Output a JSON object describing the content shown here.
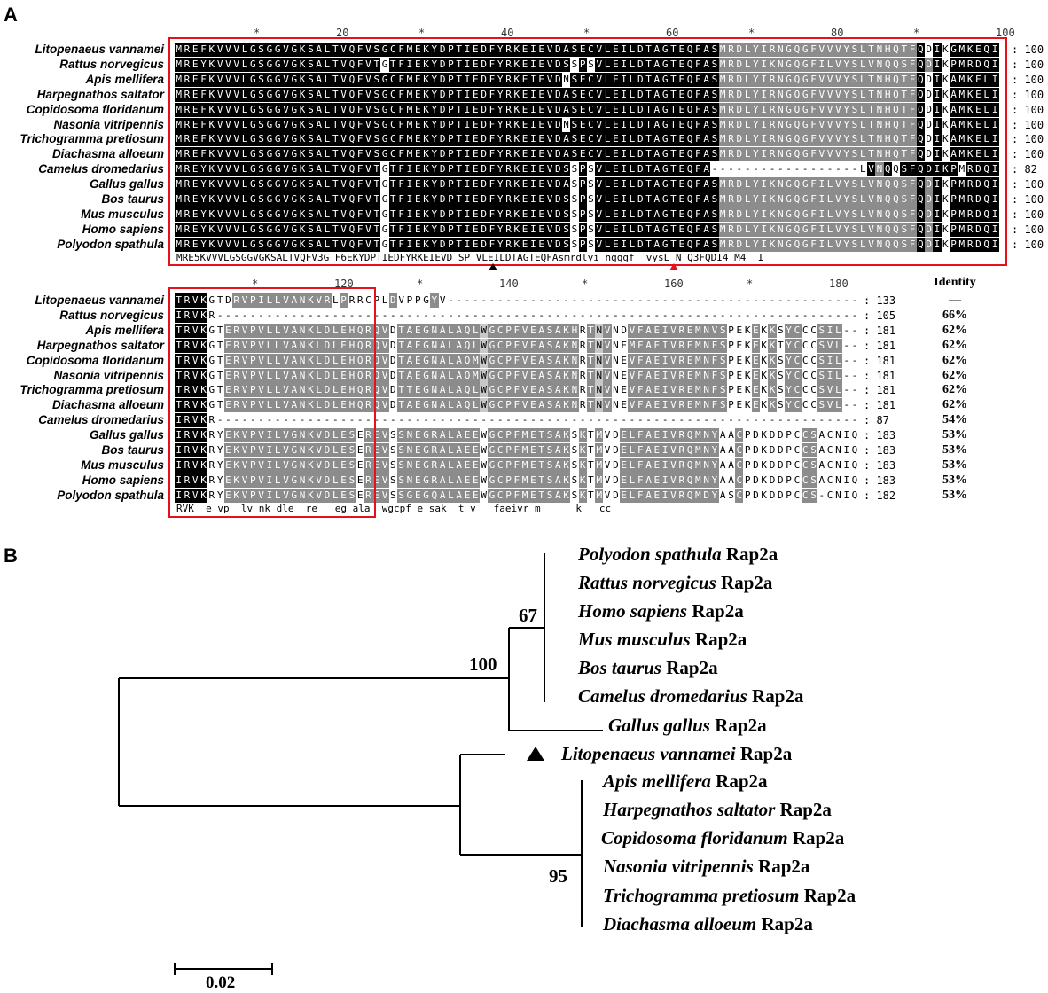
{
  "panel_a": {
    "letter": "A",
    "ruler1": [
      "*",
      "20",
      "*",
      "40",
      "*",
      "60",
      "*",
      "80",
      "*",
      "100"
    ],
    "ruler2": [
      "*",
      "120",
      "*",
      "140",
      "*",
      "160",
      "*",
      "180"
    ],
    "identity_header": "Identity",
    "block1": [
      {
        "name": "Litopenaeus vannamei",
        "count": "100",
        "seq": "MREFKVVVLGSGGVGKSALTVQFVSGCFMEKYDPTIEDFYRKEIEVDASECVLEILDTAGTEQFASMRDLYIRNGQGFVVVYSLTNHQTFQDIKGMKEQI",
        "mask": "bbbbbbbbbbbbbbbbbbbbbbbbbbbbbbbbbbbbbbbbbbbbbbbbbbbbbbbbbbbbbbbbbbggggggggggggggggggggggggbwbwbbbbbbbbwbbbbw"
      },
      {
        "name": "Rattus norvegicus",
        "count": "100",
        "seq": "MREYKVVVLGSGGVGKSALTVQFVTGTFIEKYDPTIEDFYRKEIEVDSSPSVLEILDTAGTEQFASMRDLYIKNGQGFILVYSLVNQQSFQDIKPMRDQI",
        "mask": "bbbbbbbbbbbbbbbbbbbbbbbbbwbbbbbbbbbbbbbbbbbbbbbbwbwbbbbbbbbbbbbbbbggggggggggggggggggggggggbgbwbbbbbbbwbbbbw"
      },
      {
        "name": "Apis mellifera",
        "count": "100",
        "seq": "MREFKVVVLGSGGVGKSALTVQFVSGCFMEKYDPTIEDFYRKEIEVDNSECVLEILDTAGTEQFASMRDLYIRNGQGFVVVYSLTNHQTFQDIKAMKELI",
        "mask": "bbbbbbbbbbbbbbbbbbbbbbbbbbbbbbbbbbbbbbbbbbbbbbbwbbbbbbbbbbbbbbbbbbggggggggggggggggggggggggbwbwbbbbbbbbwbbbbw"
      },
      {
        "name": "Harpegnathos saltator",
        "count": "100",
        "seq": "MREFKVVVLGSGGVGKSALTVQFVSGCFMEKYDPTIEDFYRKEIEVDASECVLEILDTAGTEQFASMRDLYIRNGQGFVVVYSLTNHQTFQDIKAMKELI",
        "mask": "bbbbbbbbbbbbbbbbbbbbbbbbbbbbbbbbbbbbbbbbbbbbbbbbbbbbbbbbbbbbbbbbbbggggggggggggggggggggggggbwbwbbbbbbbbwbbbbw"
      },
      {
        "name": "Copidosoma floridanum",
        "count": "100",
        "seq": "MREFKVVVLGSGGVGKSALTVQFVSGCFMEKYDPTIEDFYRKEIEVDASECVLEILDTAGTEQFASMRDLYIRNGQGFVVVYSLTNHQTFQDIKAMKELI",
        "mask": "bbbbbbbbbbbbbbbbbbbbbbbbbbbbbbbbbbbbbbbbbbbbbbbbbbbbbbbbbbbbbbbbbbggggggggggggggggggggggggbwbwbbbbbbbbwbbbbw"
      },
      {
        "name": "Nasonia vitripennis",
        "count": "100",
        "seq": "MREFKVVVLGSGGVGKSALTVQFVSGCFMEKYDPTIEDFYRKEIEVDNSECVLEILDTAGTEQFASMRDLYIRNGQGFVVVYSLTNHQTFQDIKAMKELI",
        "mask": "bbbbbbbbbbbbbbbbbbbbbbbbbbbbbbbbbbbbbbbbbbbbbbbwbbbbbbbbbbbbbbbbbbggggggggggggggggggggggggbwbwbbbbbbbbwbbbbw"
      },
      {
        "name": "Trichogramma pretiosum",
        "count": "100",
        "seq": "MREFKVVVLGSGGVGKSALTVQFVSGCFMEKYDPTIEDFYRKEIEVDASECVLEILDTAGTEQFASMRDLYIRNGQGFVVVYSLTNHQTFQDIKAMKELI",
        "mask": "bbbbbbbbbbbbbbbbbbbbbbbbbbbbbbbbbbbbbbbbbbbbbbbbbbbbbbbbbbbbbbbbbbggggggggggggggggggggggggbwbwbbbbbbbbwbbbbw"
      },
      {
        "name": "Diachasma alloeum",
        "count": "100",
        "seq": "MREFKVVVLGSGGVGKSALTVQFVSGCFMEKYDPTIEDFYRKEIEVDASECVLEILDTAGTEQFASMRDLYIRNGQGFVVVYSLTNHQTFQDIKAMKELI",
        "mask": "bbbbbbbbbbbbbbbbbbbbbbbbbbbbbbbbbbbbbbbbbbbbbbbbbbbbbbbbbbbbbbbbbbggggggggggggggggggggggggbwbwbbbbbbbbwbbbbw"
      },
      {
        "name": "Camelus dromedarius",
        "count": "82",
        "seq": "MREYKVVVLGSGGVGKSALTVQFVTGTFIEKYDPTIEDFYRKEIEVDSSPSVLEILDTAGTEQFA------------------LVNQQSFQDIKPMRDQI",
        "mask": "bbbbbbbbbbbbbbbbbbbbbbbbbwbbbbbbbbbbbbbbbbbbbbbbwbwbbbbbbbbbbbbbbbwwwwwwwwwwwwwwwwwwbgbwbbbbbbbwbbbbw"
      },
      {
        "name": "Gallus gallus",
        "count": "100",
        "seq": "MREYKVVVLGSGGVGKSALTVQFVTGTFIEKYDPTIEDFYRKEIEVDASPSVLEILDTAGTEQFASMRDLYIKNGQGFILVYSLVNQQSFQDIKPMRDQI",
        "mask": "bbbbbbbbbbbbbbbbbbbbbbbbbwbbbbbbbbbbbbbbbbbbbbbbwbwbbbbbbbbbbbbbbbggggggggggggggggggggggggbgbwbbbbbbbwbbbbw"
      },
      {
        "name": "Bos taurus",
        "count": "100",
        "seq": "MREYKVVVLGSGGVGKSALTVQFVTGTFIEKYDPTIEDFYRKEIEVDSSPSVLEILDTAGTEQFASMRDLYIKNGQGFILVYSLVNQQSFQDIKPMRDQI",
        "mask": "bbbbbbbbbbbbbbbbbbbbbbbbbwbbbbbbbbbbbbbbbbbbbbbbwbwbbbbbbbbbbbbbbbggggggggggggggggggggggggbgbwbbbbbbbwbbbbw"
      },
      {
        "name": "Mus musculus",
        "count": "100",
        "seq": "MREYKVVVLGSGGVGKSALTVQFVTGTFIEKYDPTIEDFYRKEIEVDSSPSVLEILDTAGTEQFASMRDLYIKNGQGFILVYSLVNQQSFQDIKPMRDQI",
        "mask": "bbbbbbbbbbbbbbbbbbbbbbbbbwbbbbbbbbbbbbbbbbbbbbbbwbwbbbbbbbbbbbbbbbggggggggggggggggggggggggbgbwbbbbbbbwbbbbw"
      },
      {
        "name": "Homo sapiens",
        "count": "100",
        "seq": "MREYKVVVLGSGGVGKSALTVQFVTGTFIEKYDPTIEDFYRKEIEVDSSPSVLEILDTAGTEQFASMRDLYIKNGQGFILVYSLVNQQSFQDIKPMRDQI",
        "mask": "bbbbbbbbbbbbbbbbbbbbbbbbbwbbbbbbbbbbbbbbbbbbbbbbwbwbbbbbbbbbbbbbbbggggggggggggggggggggggggbgbwbbbbbbbwbbbbw"
      },
      {
        "name": "Polyodon spathula",
        "count": "100",
        "seq": "MREYKVVVLGSGGVGKSALTVQFVTGTFIEKYDPTIEDFYRKEIEVDSSPSVLEILDTAGTEQFASMRDLYIKNGQGFILVYSLVNQQSFQDIKPMRDQI",
        "mask": "bbbbbbbbbbbbbbbbbbbbbbbbbwbbbbbbbbbbbbbbbbbbbbbbwbwbbbbbbbbbbbbbbbggggggggggggggggggggggggbgbwbbbbbbbwbbbbw"
      }
    ],
    "consensus1": "MRE5KVVVLGSGGVGKSALTVQFV3G F6EKYDPTIEDFYRKEIEVD SP VLEILDTAGTEQFAsmrdlyi ngqgf  vysL N Q3FQDI4 M4  I",
    "block2": [
      {
        "name": "Litopenaeus vannamei",
        "count": "133",
        "identity": "—",
        "seq": "TRVKGTDRVPILLVANKVRLPRRCPLDVPPGYV---------------------------------------------------",
        "mask": "bbbbwwwggggggggggggwgwwwwwgwwwwgwwwwwwwwwwwwwwwwwwwwwwwwwwwwwwwwwwwwwwwwwwwwwwwwwwwwwwwwwww"
      },
      {
        "name": "Rattus norvegicus",
        "count": "105",
        "identity": "66%",
        "seq": "IRVKR------------------------------------------------------------------------------",
        "mask": "bbbbwwwwwwwwwwwwwwwwwwwwwwwwwwwwwwwwwwwwwwwwwwwwwwwwwwwwwwwwwwwwwwwwwwwwwwwwwwwwwwwwwwww"
      },
      {
        "name": "Apis mellifera",
        "count": "181",
        "identity": "62%",
        "seq": "TRVKGTERVPVLLVANKLDLEHQRQVDTAEGNALAQLWGCPFVEASAKHRTNVNDVFAEIVREMNVSPEKEKKSYCCCSIL--",
        "mask": "bbbbwwggggggggggggggggggggwgggggggggglgggggggggggwglgwwggggggggggggwwwgwgwggwwgggggwww"
      },
      {
        "name": "Harpegnathos saltator",
        "count": "181",
        "identity": "62%",
        "seq": "TRVKGTERVPVLLVANKLDLEHQRQVDTAEGNALAQLWGCPFVEASAKNRTNVNEMFAEIVREMNFSPEKEKKTYCCCSVL--",
        "mask": "bbbbwwggggggggggggggggggggwgggggggggglgggggggggggwglgwwggggggggggggwwwgwgwggwwgggggwww"
      },
      {
        "name": "Copidosoma floridanum",
        "count": "181",
        "identity": "62%",
        "seq": "TRVKGTERVPVLLVANKLDLEHQRQVDTAEGNALAQMWGCPFVEASAKNRTNVNEVFAEIVREMNFSPEKEKKSYCCCSIL--",
        "mask": "bbbbwwggggggggggggggggggggwgggggggggglgggggggggggwglgwwggggggggggggwwwgwgwggwwgggggwww"
      },
      {
        "name": "Nasonia vitripennis",
        "count": "181",
        "identity": "62%",
        "seq": "TRVKGTERVPVLLVANKLDLEHQRQVDTAEGNALAQMWGCPFVEASAKNRTNVNEVFAEIVREMNFSPEKEKKSYCCCSIL--",
        "mask": "bbbbwwggggggggggggggggggggwgggggggggglgggggggggggwglgwwggggggggggggwwwgwgwggwwgggggwww"
      },
      {
        "name": "Trichogramma pretiosum",
        "count": "181",
        "identity": "62%",
        "seq": "TRVKGTERVPVLLVANKLDLEHQRQVDTTEGNALAQLWGCPFVEASAKNRTNVNEVFAEIVREMNFSPEKEKKSYCCCSVL--",
        "mask": "bbbbwwggggggggggggggggggggwgggggggggglgggggggggggwglgwwggggggggggggwwwgwgwggwwgggggwww"
      },
      {
        "name": "Diachasma alloeum",
        "count": "181",
        "identity": "62%",
        "seq": "TRVKGTERVPVLLVANKLDLEHQRQVDTAEGNALAQLWGCPFVEASAKNRTNVNEVFAEIVREMNFSPEKEKKSYCCCSVL--",
        "mask": "bbbbwwggggggggggggggggggggwgggggggggglgggggggggggwglgwwggggggggggggwwwgwgwggwwgggggwww"
      },
      {
        "name": "Camelus dromedarius",
        "count": "87",
        "identity": "54%",
        "seq": "IRVKR------------------------------------------------------------------------------",
        "mask": "bbbbwwwwwwwwwwwwwwwwwwwwwwwwwwwwwwwwwwwwwwwwwwwwwwwwwwwwwwwwwwwwwwwwwwwwwwwwwwwwwwwwwwww"
      },
      {
        "name": "Gallus gallus",
        "count": "183",
        "identity": "53%",
        "seq": "IRVKRYEKVPVILVGNKVDLESEREVSSNEGRALAEEWGCPFMETSAKSKTMVDELFAEIVRQMNYAACPDKDDPCCSACNIQ",
        "mask": "bbbbwwggggggggggggggggwgggwggggggggggwggggggggggwgwgwwggggggggggggwwgwwwwwwwggwwwwwwww"
      },
      {
        "name": "Bos taurus",
        "count": "183",
        "identity": "53%",
        "seq": "IRVKRYEKVPVILVGNKVDLESEREVSSNEGRALAEEWGCPFMETSAKSKTMVDELFAEIVRQMNYAACPDKDDPCCSACNIQ",
        "mask": "bbbbwwggggggggggggggggwgggwggggggggggwggggggggggwgwgwwggggggggggggwwgwwwwwwwggwwwwwwww"
      },
      {
        "name": "Mus musculus",
        "count": "183",
        "identity": "53%",
        "seq": "IRVKRYEKVPVILVGNKVDLESEREVSSNEGRALAEEWGCPFMETSAKSKTMVDELFAEIVRQMNYAACPDKDDPCCSACNIQ",
        "mask": "bbbbwwggggggggggggggggwgggwggggggggggwggggggggggwgwgwwggggggggggggwwgwwwwwwwggwwwwwwww"
      },
      {
        "name": "Homo sapiens",
        "count": "183",
        "identity": "53%",
        "seq": "IRVKRYEKVPVILVGNKVDLESEREVSSNEGRALAEEWGCPFMETSAKSKTMVDELFAEIVRQMNYAACPDKDDPCCSACNIQ",
        "mask": "bbbbwwggggggggggggggggwgggwggggggggggwggggggggggwgwgwwggggggggggggwwgwwwwwwwggwwwwwwww"
      },
      {
        "name": "Polyodon spathula",
        "count": "182",
        "identity": "53%",
        "seq": "IRVKRYEKVPVILVGNKVDLESEREVSSGEGQALAEEWGCPFMETSAKSKTMVDELFAEIVRQMDYASCPDKDDPCCS-CNIQ",
        "mask": "bbbbwwggggggggggggggggwgggwggggggggggwggggggggggwgwgwwggggggggggggwwgwwwwwwwggwwwwwwww"
      }
    ],
    "consensus2": "RVK  e vp  lv nk dle  re   eg ala  wgcpf e sak  t v   faeivr m      k   cc"
  },
  "panel_b": {
    "letter": "B",
    "tree": {
      "vertebrate_clade": [
        {
          "species": "Polyodon spathula",
          "protein": "Rap2a"
        },
        {
          "species": "Rattus norvegicus",
          "protein": "Rap2a"
        },
        {
          "species": "Homo sapiens",
          "protein": "Rap2a"
        },
        {
          "species": "Mus musculus",
          "protein": "Rap2a"
        },
        {
          "species": "Bos taurus",
          "protein": "Rap2a"
        },
        {
          "species": "Camelus dromedarius",
          "protein": "Rap2a"
        }
      ],
      "outgroup_in_vertebrates": {
        "species": "Gallus gallus",
        "protein": "Rap2a"
      },
      "shrimp": {
        "species": "Litopenaeus vannamei",
        "protein": "Rap2a",
        "marker": "triangle"
      },
      "insect_clade": [
        {
          "species": "Apis mellifera",
          "protein": "Rap2a"
        },
        {
          "species": "Harpegnathos saltator",
          "protein": "Rap2a"
        },
        {
          "species": "Copidosoma floridanum",
          "protein": "Rap2a"
        },
        {
          "species": "Nasonia vitripennis",
          "protein": "Rap2a"
        },
        {
          "species": "Trichogramma pretiosum",
          "protein": "Rap2a"
        },
        {
          "species": "Diachasma alloeum",
          "protein": "Rap2a"
        }
      ],
      "bootstrap": {
        "mammal_node": "67",
        "vertebrate_node": "100",
        "insect_node": "95"
      },
      "scale_bar": "0.02"
    }
  },
  "colors": {
    "box": "#e8101a",
    "black": "#000000",
    "grey": "#8c8c8c",
    "light": "#c8c8c8",
    "red_triangle": "#e8101a"
  }
}
